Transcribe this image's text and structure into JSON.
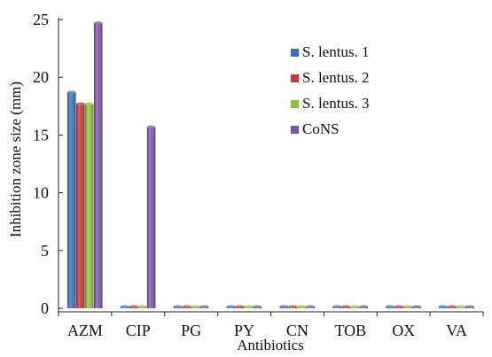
{
  "chart_data": {
    "type": "bar",
    "xlabel": "Antibiotics",
    "ylabel": "Inhibition zone size (mm)",
    "ylim": [
      0,
      25
    ],
    "yticks": [
      0,
      5,
      10,
      15,
      20,
      25
    ],
    "grid": false,
    "legend_position": "top-right",
    "categories": [
      "AZM",
      "CIP",
      "PG",
      "PY",
      "CN",
      "TOB",
      "OX",
      "VA"
    ],
    "series": [
      {
        "name": "S. lentus. 1",
        "color": "#3d6fb6",
        "values": [
          18.7,
          0,
          0,
          0,
          0,
          0,
          0,
          0
        ]
      },
      {
        "name": "S. lentus. 2",
        "color": "#c0393b",
        "values": [
          17.7,
          0,
          0,
          0,
          0,
          0,
          0,
          0
        ]
      },
      {
        "name": "S. lentus. 3",
        "color": "#8fbf3d",
        "values": [
          17.7,
          0,
          0,
          0,
          0,
          0,
          0,
          0
        ]
      },
      {
        "name": "CoNS",
        "color": "#7a56a6",
        "values": [
          24.7,
          15.7,
          0,
          0,
          0,
          0,
          0,
          0
        ]
      }
    ]
  }
}
